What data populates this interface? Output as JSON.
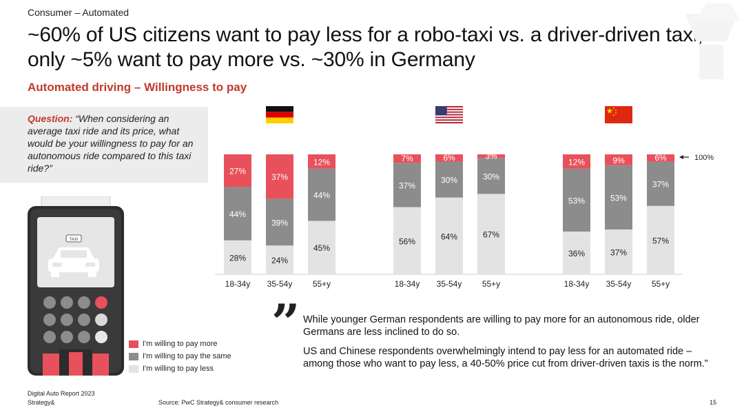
{
  "header": {
    "category": "Consumer – Automated",
    "title": "~60% of US citizens want to pay less for a robo-taxi vs. a driver-driven taxi; only ~5% want to pay more vs. ~30% in Germany",
    "subtitle": "Automated driving – Willingness to pay"
  },
  "question": {
    "label": "Question:",
    "text": " “When considering an average taxi ride and its price, what would be your willingness to pay for an autonomous ride compared to this taxi ride?”"
  },
  "illustration": {
    "taxi_sign": "TAXI"
  },
  "colors": {
    "more": "#e8505b",
    "same": "#8c8c8c",
    "less": "#e3e3e3",
    "accent": "#c0392b"
  },
  "chart_data": {
    "type": "bar",
    "stacked": true,
    "normalized_to": "100%",
    "hundred_label": "100%",
    "groups": [
      {
        "flag": "germany-flag",
        "categories": [
          "18-34y",
          "35-54y",
          "55+y"
        ],
        "series": [
          {
            "name": "I'm willing to pay less",
            "values": [
              28,
              24,
              45
            ]
          },
          {
            "name": "I'm willing to pay the same",
            "values": [
              44,
              39,
              44
            ]
          },
          {
            "name": "I'm willing to pay more",
            "values": [
              27,
              37,
              12
            ]
          }
        ]
      },
      {
        "flag": "usa-flag",
        "categories": [
          "18-34y",
          "35-54y",
          "55+y"
        ],
        "series": [
          {
            "name": "I'm willing to pay less",
            "values": [
              56,
              64,
              67
            ]
          },
          {
            "name": "I'm willing to pay the same",
            "values": [
              37,
              30,
              30
            ]
          },
          {
            "name": "I'm willing to pay more",
            "values": [
              7,
              6,
              3
            ]
          }
        ]
      },
      {
        "flag": "china-flag",
        "categories": [
          "18-34y",
          "35-54y",
          "55+y"
        ],
        "series": [
          {
            "name": "I'm willing to pay less",
            "values": [
              36,
              37,
              57
            ]
          },
          {
            "name": "I'm willing to pay the same",
            "values": [
              53,
              53,
              37
            ]
          },
          {
            "name": "I'm willing to pay more",
            "values": [
              12,
              9,
              6
            ]
          }
        ]
      }
    ]
  },
  "legend": [
    {
      "label": "I'm willing to pay more",
      "color": "#e8505b"
    },
    {
      "label": "I'm willing to pay the same",
      "color": "#8c8c8c"
    },
    {
      "label": "I'm willing to pay less",
      "color": "#e3e3e3"
    }
  ],
  "quote": {
    "paragraph1": "While younger German respondents are willing to pay more for an autonomous ride, older Germans are less inclined to do so.",
    "paragraph2": "US and Chinese respondents overwhelmingly intend to pay less for an automated ride – among those who want to pay less, a 40-50% price cut from driver-driven taxis is the norm.”"
  },
  "footer": {
    "report": "Digital Auto Report 2023",
    "brand": "Strategy&",
    "source": "Source: PwC Strategy& consumer research",
    "page": "15"
  }
}
